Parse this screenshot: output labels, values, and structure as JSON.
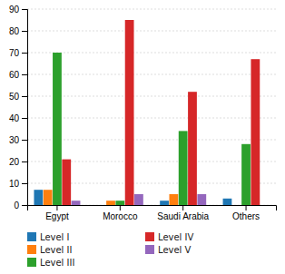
{
  "chart_data": {
    "type": "bar",
    "categories": [
      "Egypt",
      "Morocco",
      "Saudi Arabia",
      "Others"
    ],
    "series": [
      {
        "name": "Level I",
        "values": [
          7,
          0,
          2,
          3
        ]
      },
      {
        "name": "Level II",
        "values": [
          7,
          2,
          5,
          0
        ]
      },
      {
        "name": "Level III",
        "values": [
          70,
          2,
          34,
          28
        ]
      },
      {
        "name": "Level IV",
        "values": [
          21,
          85,
          52,
          67
        ]
      },
      {
        "name": "Level V",
        "values": [
          2,
          5,
          5,
          0
        ]
      }
    ],
    "ylim": [
      0,
      90
    ],
    "yticks": [
      0,
      10,
      20,
      30,
      40,
      50,
      60,
      70,
      80,
      90
    ],
    "grid": true,
    "legend": "bottom"
  }
}
